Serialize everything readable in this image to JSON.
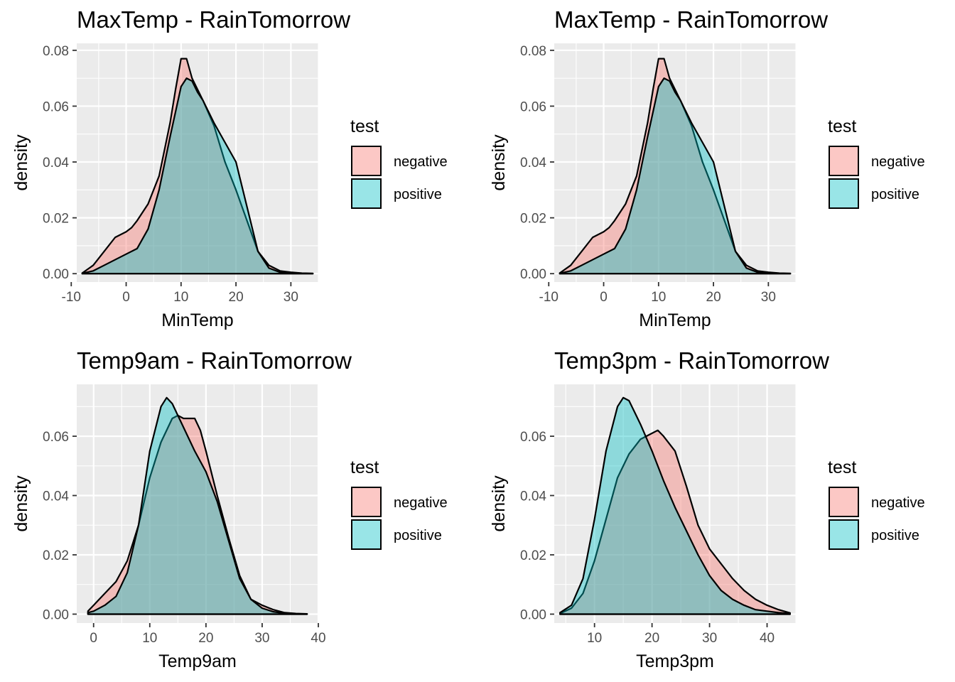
{
  "colors": {
    "negative": "#F8766D",
    "positive": "#00BFC4",
    "panel_bg": "#EBEBEB",
    "grid": "#FFFFFF"
  },
  "chart_data": [
    {
      "type": "area",
      "title": "MaxTemp - RainTomorrow",
      "xlabel": "MinTemp",
      "ylabel": "density",
      "xlim": [
        -9,
        35
      ],
      "ylim": [
        -0.003,
        0.0825
      ],
      "x_ticks": [
        -10,
        0,
        10,
        20,
        30
      ],
      "x_tick_labels": [
        "-10",
        "0",
        "10",
        "20",
        "30"
      ],
      "y_ticks": [
        0,
        0.02,
        0.04,
        0.06,
        0.08
      ],
      "y_tick_labels": [
        "0.00",
        "0.02",
        "0.04",
        "0.06",
        "0.08"
      ],
      "legend": {
        "title": "test",
        "labels": [
          "negative",
          "positive"
        ],
        "placement": "right"
      },
      "series": [
        {
          "name": "negative",
          "x": [
            -8,
            -6,
            -4,
            -2,
            0,
            1,
            2,
            4,
            6,
            8,
            9,
            10,
            11,
            12,
            13,
            14,
            16,
            18,
            20,
            22,
            24,
            26,
            28,
            30,
            32,
            34
          ],
          "y": [
            0.0002,
            0.003,
            0.008,
            0.013,
            0.015,
            0.0165,
            0.019,
            0.025,
            0.035,
            0.054,
            0.066,
            0.077,
            0.077,
            0.07,
            0.066,
            0.062,
            0.053,
            0.04,
            0.03,
            0.019,
            0.008,
            0.003,
            0.001,
            0.0005,
            0.0002,
            0.0001
          ]
        },
        {
          "name": "positive",
          "x": [
            -8,
            -6,
            -4,
            -2,
            0,
            2,
            4,
            6,
            8,
            9,
            10,
            11,
            12,
            13,
            14,
            16,
            18,
            20,
            22,
            24,
            26,
            28,
            30,
            32,
            34
          ],
          "y": [
            0.0001,
            0.001,
            0.003,
            0.005,
            0.007,
            0.009,
            0.016,
            0.03,
            0.049,
            0.058,
            0.067,
            0.07,
            0.069,
            0.065,
            0.062,
            0.054,
            0.047,
            0.04,
            0.024,
            0.008,
            0.002,
            0.0005,
            0.0002,
            0.0001,
            0.0
          ]
        }
      ]
    },
    {
      "type": "area",
      "title": "MaxTemp - RainTomorrow",
      "xlabel": "MinTemp",
      "ylabel": "density",
      "xlim": [
        -9,
        35
      ],
      "ylim": [
        -0.003,
        0.0825
      ],
      "x_ticks": [
        -10,
        0,
        10,
        20,
        30
      ],
      "x_tick_labels": [
        "-10",
        "0",
        "10",
        "20",
        "30"
      ],
      "y_ticks": [
        0,
        0.02,
        0.04,
        0.06,
        0.08
      ],
      "y_tick_labels": [
        "0.00",
        "0.02",
        "0.04",
        "0.06",
        "0.08"
      ],
      "legend": {
        "title": "test",
        "labels": [
          "negative",
          "positive"
        ],
        "placement": "right"
      },
      "series": [
        {
          "name": "negative",
          "x": [
            -8,
            -6,
            -4,
            -2,
            0,
            1,
            2,
            4,
            6,
            8,
            9,
            10,
            11,
            12,
            13,
            14,
            16,
            18,
            20,
            22,
            24,
            26,
            28,
            30,
            32,
            34
          ],
          "y": [
            0.0002,
            0.003,
            0.008,
            0.013,
            0.015,
            0.0165,
            0.019,
            0.025,
            0.035,
            0.054,
            0.066,
            0.077,
            0.077,
            0.07,
            0.066,
            0.062,
            0.053,
            0.04,
            0.03,
            0.019,
            0.008,
            0.003,
            0.001,
            0.0005,
            0.0002,
            0.0001
          ]
        },
        {
          "name": "positive",
          "x": [
            -8,
            -6,
            -4,
            -2,
            0,
            2,
            4,
            6,
            8,
            9,
            10,
            11,
            12,
            13,
            14,
            16,
            18,
            20,
            22,
            24,
            26,
            28,
            30,
            32,
            34
          ],
          "y": [
            0.0001,
            0.001,
            0.003,
            0.005,
            0.007,
            0.009,
            0.016,
            0.03,
            0.049,
            0.058,
            0.067,
            0.07,
            0.069,
            0.065,
            0.062,
            0.054,
            0.047,
            0.04,
            0.024,
            0.008,
            0.002,
            0.0005,
            0.0002,
            0.0001,
            0.0
          ]
        }
      ]
    },
    {
      "type": "area",
      "title": "Temp9am - RainTomorrow",
      "xlabel": "Temp9am",
      "ylabel": "density",
      "xlim": [
        -3,
        40
      ],
      "ylim": [
        -0.003,
        0.0775
      ],
      "x_ticks": [
        0,
        10,
        20,
        30,
        40
      ],
      "x_tick_labels": [
        "0",
        "10",
        "20",
        "30",
        "40"
      ],
      "y_ticks": [
        0,
        0.02,
        0.04,
        0.06
      ],
      "y_tick_labels": [
        "0.00",
        "0.02",
        "0.04",
        "0.06"
      ],
      "legend": {
        "title": "test",
        "labels": [
          "negative",
          "positive"
        ],
        "placement": "right"
      },
      "series": [
        {
          "name": "negative",
          "x": [
            -1,
            0,
            2,
            4,
            6,
            8,
            10,
            12,
            14,
            15,
            16,
            17,
            18,
            19,
            20,
            22,
            24,
            26,
            28,
            30,
            32,
            34,
            36,
            38
          ],
          "y": [
            0.001,
            0.003,
            0.007,
            0.011,
            0.018,
            0.03,
            0.046,
            0.058,
            0.066,
            0.067,
            0.066,
            0.066,
            0.066,
            0.062,
            0.055,
            0.04,
            0.026,
            0.013,
            0.005,
            0.003,
            0.0015,
            0.0005,
            0.0002,
            0.0001
          ]
        },
        {
          "name": "positive",
          "x": [
            -1,
            0,
            2,
            4,
            6,
            8,
            10,
            12,
            13,
            14,
            16,
            18,
            20,
            22,
            24,
            26,
            28,
            30,
            32,
            34,
            36,
            38
          ],
          "y": [
            0.0005,
            0.001,
            0.003,
            0.006,
            0.014,
            0.03,
            0.055,
            0.07,
            0.073,
            0.071,
            0.063,
            0.055,
            0.048,
            0.038,
            0.025,
            0.012,
            0.005,
            0.002,
            0.0008,
            0.0003,
            0.0001,
            0.0
          ]
        }
      ]
    },
    {
      "type": "area",
      "title": "Temp3pm - RainTomorrow",
      "xlabel": "Temp3pm",
      "ylabel": "density",
      "xlim": [
        3,
        45
      ],
      "ylim": [
        -0.003,
        0.0775
      ],
      "x_ticks": [
        10,
        20,
        30,
        40
      ],
      "x_tick_labels": [
        "10",
        "20",
        "30",
        "40"
      ],
      "y_ticks": [
        0,
        0.02,
        0.04,
        0.06
      ],
      "y_tick_labels": [
        "0.00",
        "0.02",
        "0.04",
        "0.06"
      ],
      "legend": {
        "title": "test",
        "labels": [
          "negative",
          "positive"
        ],
        "placement": "right"
      },
      "series": [
        {
          "name": "negative",
          "x": [
            4,
            6,
            8,
            10,
            12,
            14,
            16,
            18,
            20,
            21,
            22,
            24,
            26,
            28,
            30,
            32,
            34,
            36,
            38,
            40,
            42,
            44
          ],
          "y": [
            0.0002,
            0.002,
            0.007,
            0.018,
            0.032,
            0.046,
            0.054,
            0.059,
            0.061,
            0.062,
            0.06,
            0.055,
            0.043,
            0.03,
            0.022,
            0.017,
            0.012,
            0.008,
            0.005,
            0.003,
            0.0015,
            0.0004
          ]
        },
        {
          "name": "positive",
          "x": [
            4,
            6,
            8,
            10,
            12,
            14,
            15,
            16,
            17,
            18,
            20,
            22,
            24,
            26,
            28,
            30,
            32,
            34,
            36,
            38,
            40,
            42,
            44
          ],
          "y": [
            0.0005,
            0.003,
            0.012,
            0.032,
            0.055,
            0.07,
            0.073,
            0.072,
            0.068,
            0.064,
            0.055,
            0.045,
            0.036,
            0.028,
            0.02,
            0.013,
            0.008,
            0.005,
            0.003,
            0.0015,
            0.001,
            0.0005,
            0.0002
          ]
        }
      ]
    }
  ]
}
